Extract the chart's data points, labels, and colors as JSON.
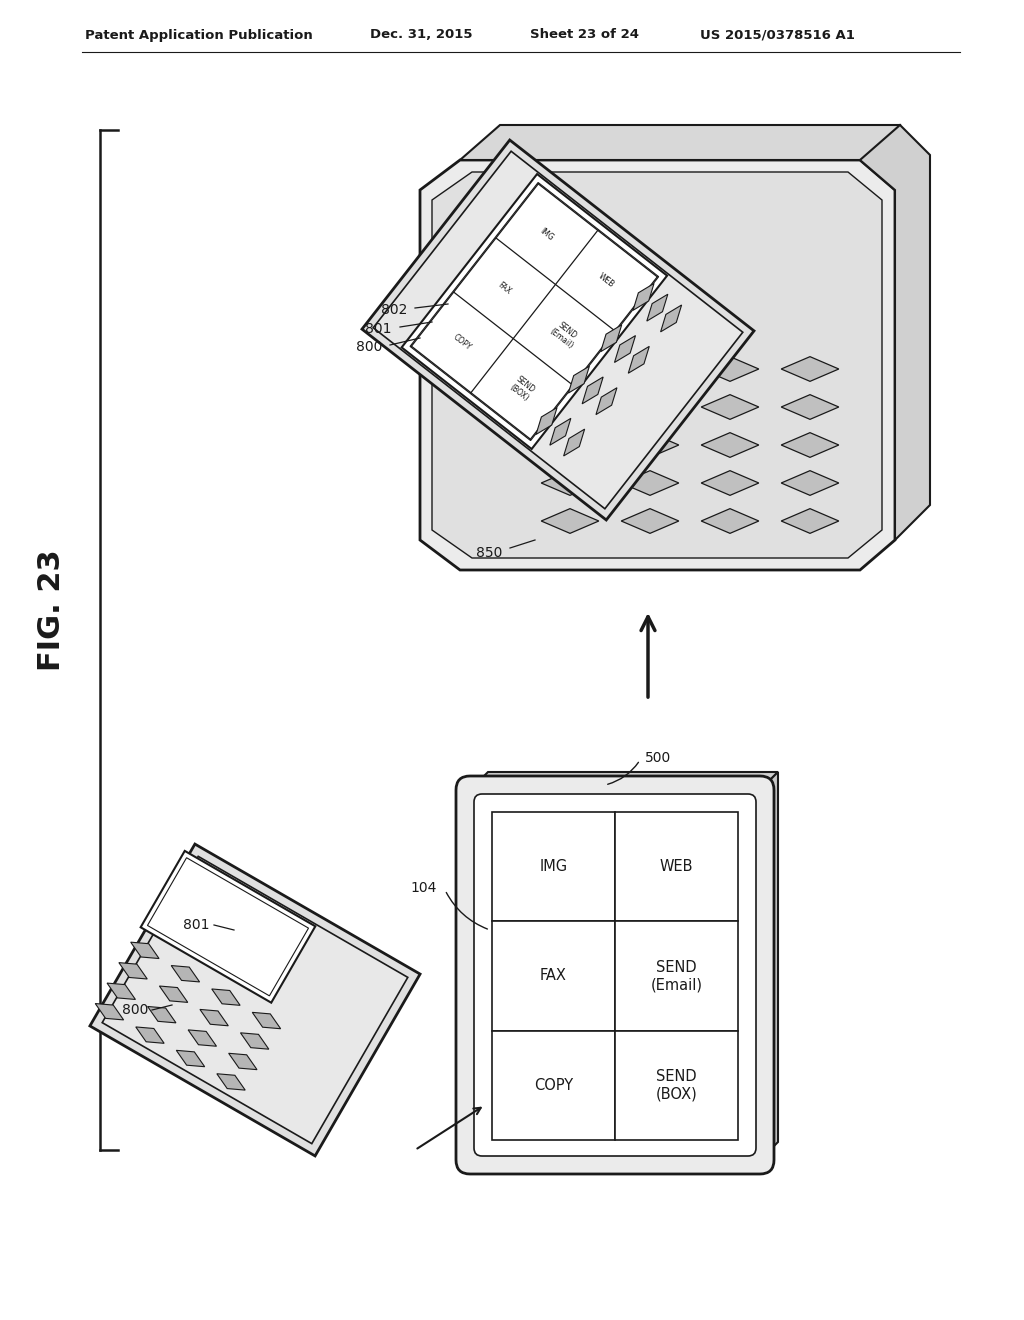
{
  "bg_color": "#ffffff",
  "header_text": "Patent Application Publication",
  "header_date": "Dec. 31, 2015",
  "header_sheet": "Sheet 23 of 24",
  "header_patent": "US 2015/0378516 A1",
  "fig_label": "FIG. 23",
  "line_color": "#1a1a1a",
  "button_labels": [
    [
      "IMG",
      "WEB"
    ],
    [
      "FAX",
      "SEND\n(Email)"
    ],
    [
      "COPY",
      "SEND\n(BOX)"
    ]
  ]
}
